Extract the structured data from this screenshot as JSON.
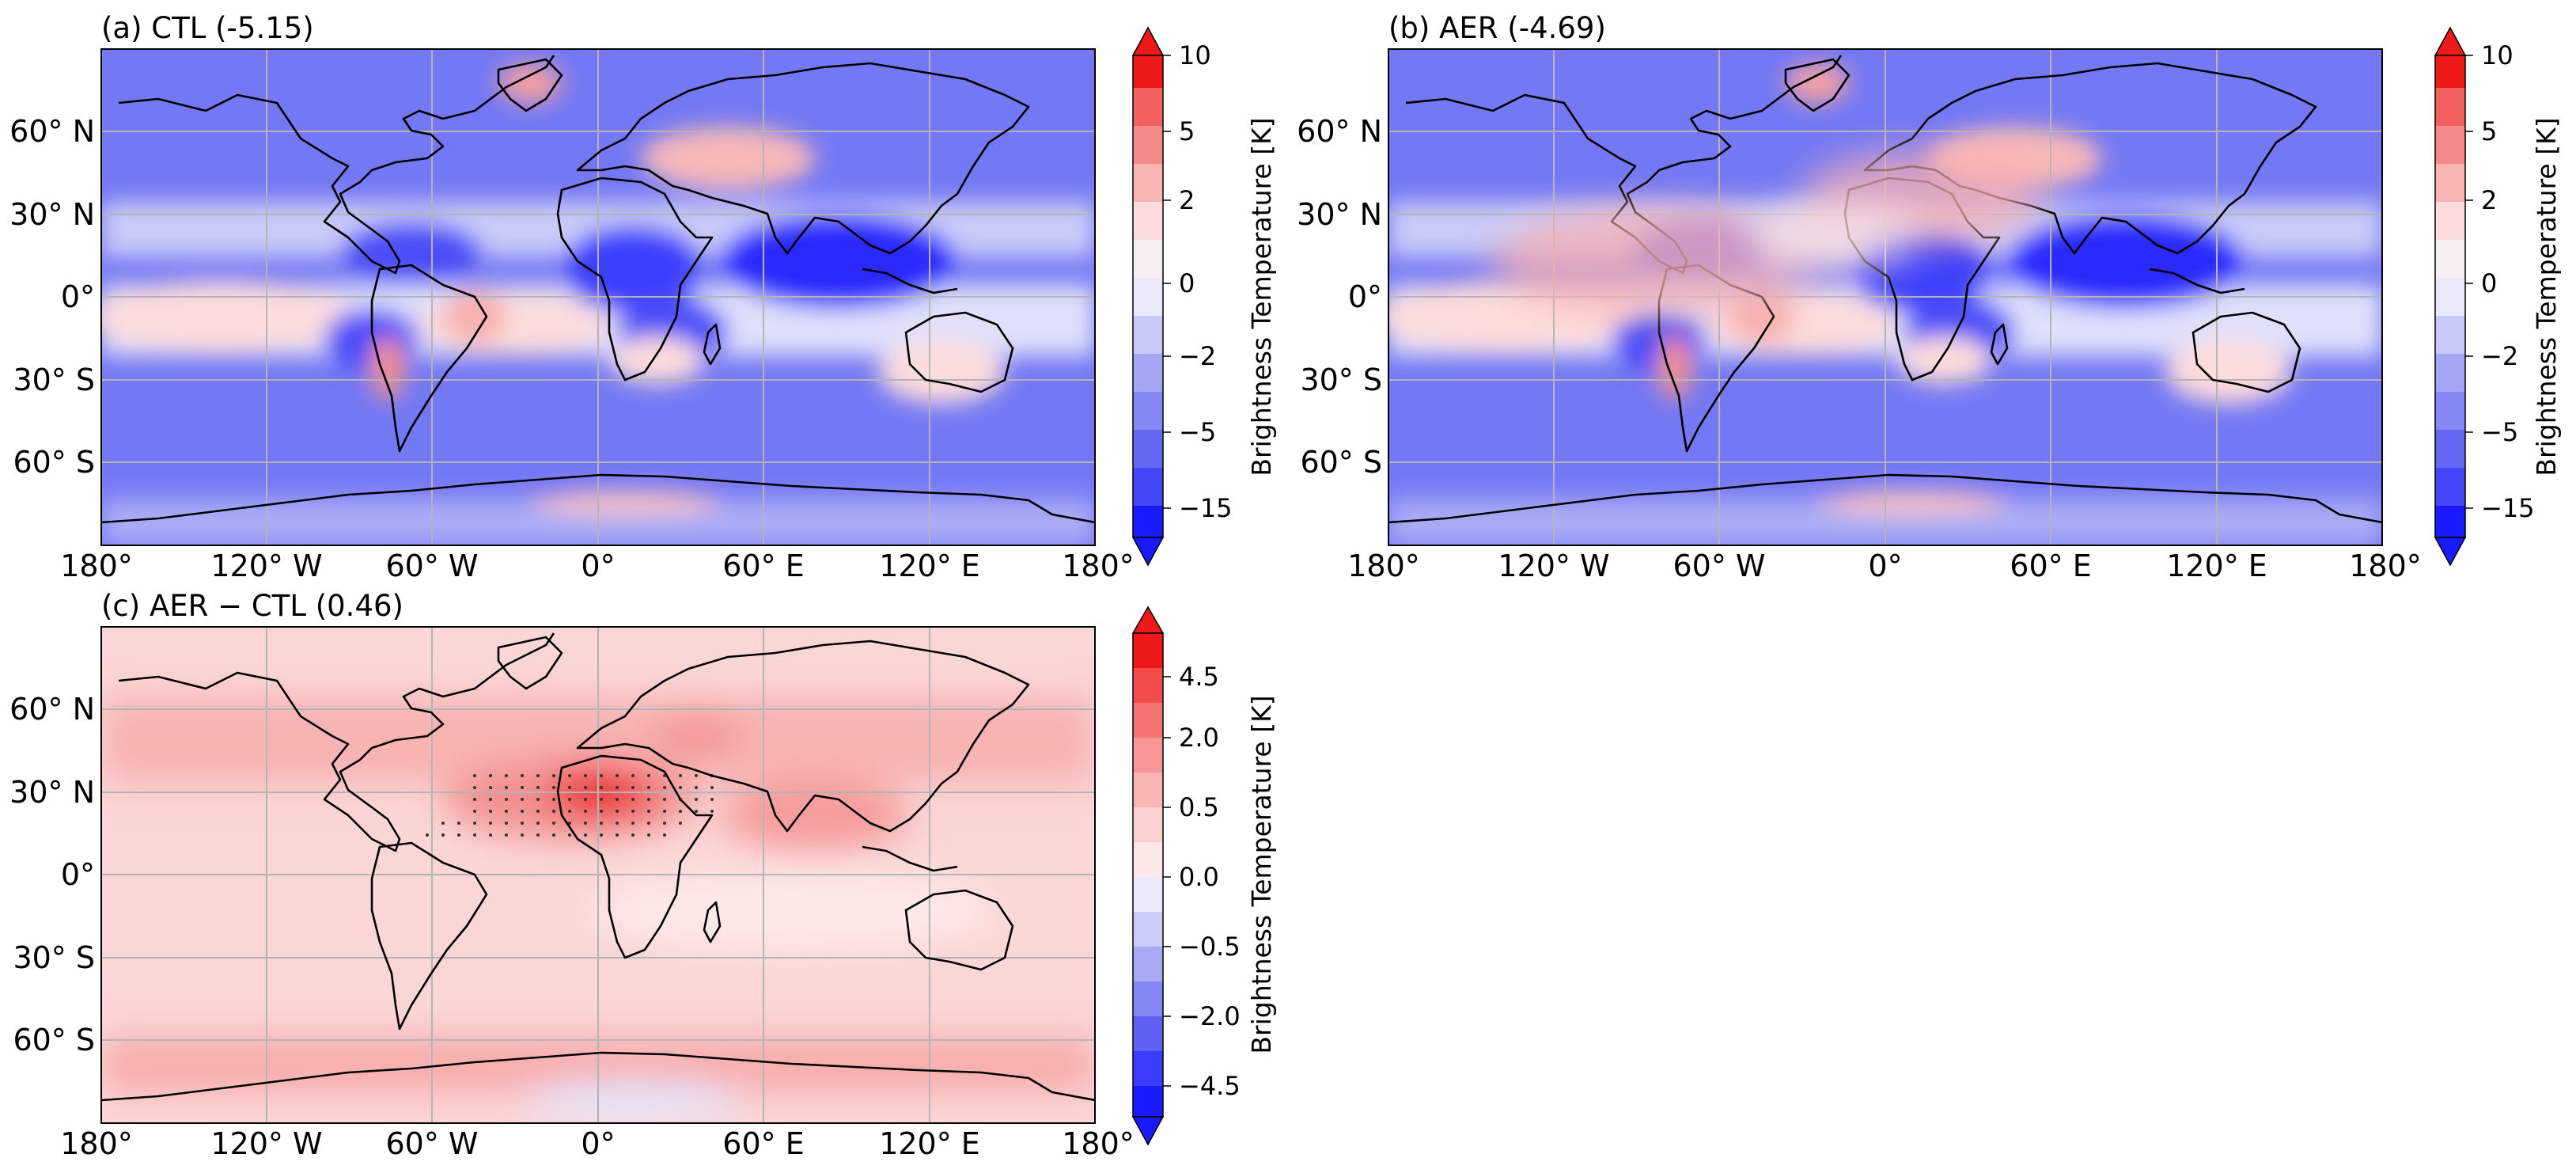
{
  "figure": {
    "type": "map",
    "projection": "PlateCarree",
    "lon_ticks": [
      "180°",
      "120° W",
      "60° W",
      "0°",
      "60° E",
      "120° E",
      "180°"
    ],
    "lat_ticks": [
      "60° N",
      "30° N",
      "0°",
      "30° S",
      "60° S"
    ]
  },
  "panels": [
    {
      "id": "a",
      "title": "(a) CTL (-5.15)",
      "global_mean": -5.15,
      "colorbar": {
        "label": "Brightness Temperature [K]",
        "ticks": [
          "10",
          "5",
          "2",
          "0",
          "−2",
          "−5",
          "−15"
        ],
        "extend": "both"
      }
    },
    {
      "id": "b",
      "title": "(b) AER (-4.69)",
      "global_mean": -4.69,
      "colorbar": {
        "label": "Brightness Temperature [K]",
        "ticks": [
          "10",
          "5",
          "2",
          "0",
          "−2",
          "−5",
          "−15"
        ],
        "extend": "both"
      }
    },
    {
      "id": "c",
      "title": "(c) AER − CTL (0.46)",
      "global_mean": 0.46,
      "colorbar": {
        "label": "Brightness Temperature [K]",
        "ticks": [
          "4.5",
          "2.0",
          "0.5",
          "0.0",
          "−0.5",
          "−2.0",
          "−4.5"
        ],
        "extend": "both"
      }
    }
  ],
  "colors": {
    "strong_negative": "#1a1aff",
    "mid_negative": "#6f72f5",
    "weak_negative": "#dfe0fa",
    "weak_positive": "#fcdcdc",
    "mid_positive": "#f9a0a0",
    "strong_positive": "#ee1a1a",
    "coastline": "#000000",
    "gridline": "#b4b4b4"
  }
}
